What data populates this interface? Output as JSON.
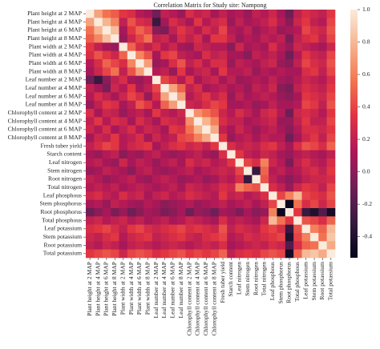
{
  "chart_data": {
    "type": "heatmap",
    "title": "Correlation Matrix for Study site: Nampong",
    "categories": [
      "Plant height at 2 MAP",
      "Plant height at 4 MAP",
      "Plant height at 6 MAP",
      "Plant height at 8 MAP",
      "Plant width at 2 MAP",
      "Plant width at 4 MAP",
      "Plant width at 6 MAP",
      "Plant width at 8 MAP",
      "Leaf number at 2 MAP",
      "Leaf number at 4 MAP",
      "Leaf number at 6 MAP",
      "Leaf number at 8 MAP",
      "Chlorophyll content at 2 MAP",
      "Chlorophyll content at 4 MAP",
      "Chlorophyll content at 6 MAP",
      "Chlorophyll content at 8 MAP",
      "Fresh tuber yield",
      "Starch content",
      "Leaf nitrogen",
      "Stem nitrogen",
      "Root nitrogen",
      "Total nitrogen",
      "Leaf phosphous",
      "Stem phosphorus",
      "Root phosphorus",
      "Total phosphous",
      "Leaf potassium",
      "Stem potassium",
      "Root potassium",
      "Total potassium"
    ],
    "values": [
      [
        1
      ],
      [
        0.72,
        1
      ],
      [
        0.55,
        0.78,
        1
      ],
      [
        0.48,
        0.62,
        0.82,
        1
      ],
      [
        0.35,
        0.2,
        0.1,
        0.05,
        1
      ],
      [
        0.3,
        0.45,
        0.35,
        0.25,
        0.5,
        1
      ],
      [
        0.15,
        0.3,
        0.5,
        0.4,
        0.3,
        0.62,
        1
      ],
      [
        0.1,
        0.25,
        0.4,
        0.55,
        0.2,
        0.45,
        0.7,
        1
      ],
      [
        -0.1,
        -0.3,
        0.0,
        0.2,
        0.3,
        0.1,
        0.05,
        0.15,
        1
      ],
      [
        0.2,
        0.1,
        -0.05,
        0.25,
        0.15,
        0.35,
        0.1,
        0.2,
        0.4,
        1
      ],
      [
        0.15,
        0.3,
        0.2,
        0.1,
        0.25,
        0.4,
        0.3,
        0.05,
        0.3,
        0.72,
        1
      ],
      [
        0.05,
        0.2,
        0.35,
        0.3,
        0.1,
        0.2,
        0.45,
        0.35,
        0.15,
        0.5,
        0.7,
        1
      ],
      [
        0.3,
        0.1,
        0.25,
        0.2,
        0.05,
        0.15,
        0.2,
        0.1,
        0.35,
        0.2,
        0.15,
        0.25,
        1
      ],
      [
        0.2,
        0.35,
        0.15,
        0.3,
        0.25,
        0.1,
        0.3,
        0.2,
        0.1,
        0.3,
        0.25,
        0.2,
        0.65,
        1
      ],
      [
        0.25,
        0.15,
        0.3,
        0.1,
        0.2,
        0.3,
        0.15,
        0.25,
        0.2,
        0.1,
        0.35,
        0.3,
        0.55,
        0.78,
        1
      ],
      [
        0.1,
        0.25,
        0.2,
        0.35,
        0.15,
        0.2,
        0.3,
        0.1,
        0.25,
        0.15,
        0.2,
        0.4,
        0.45,
        0.6,
        0.75,
        1
      ],
      [
        0.2,
        0.3,
        0.4,
        0.35,
        0.15,
        0.25,
        0.3,
        0.35,
        0.1,
        0.2,
        0.3,
        0.35,
        0.25,
        0.3,
        0.2,
        0.35,
        1
      ],
      [
        0.1,
        0.05,
        0.15,
        0.2,
        0.0,
        0.1,
        0.05,
        0.15,
        0.2,
        0.1,
        0.05,
        0.1,
        0.15,
        0.2,
        0.1,
        0.05,
        0.3,
        1
      ],
      [
        0.15,
        0.2,
        0.1,
        0.05,
        0.25,
        0.1,
        0.2,
        0.15,
        0.05,
        0.15,
        0.2,
        0.1,
        0.3,
        0.2,
        0.25,
        0.15,
        0.2,
        0.35,
        1
      ],
      [
        0.05,
        0.1,
        0.2,
        0.15,
        0.1,
        0.0,
        0.15,
        0.2,
        0.1,
        0.05,
        0.1,
        0.15,
        0.2,
        0.1,
        0.15,
        0.2,
        0.25,
        0.2,
        0.4,
        1
      ],
      [
        0.2,
        0.15,
        0.05,
        0.1,
        0.15,
        0.2,
        0.1,
        0.05,
        0.15,
        0.2,
        0.15,
        0.05,
        0.1,
        0.15,
        0.05,
        0.1,
        0.2,
        0.15,
        0.3,
        -0.3,
        1
      ],
      [
        0.15,
        0.2,
        0.15,
        0.2,
        0.1,
        0.15,
        0.2,
        0.15,
        0.1,
        0.15,
        0.2,
        0.1,
        0.25,
        0.2,
        0.15,
        0.2,
        0.3,
        0.25,
        0.6,
        0.5,
        0.45,
        1
      ],
      [
        0.25,
        0.3,
        0.2,
        0.15,
        0.3,
        0.2,
        0.25,
        0.1,
        0.2,
        0.25,
        0.15,
        0.2,
        0.3,
        0.25,
        0.2,
        0.15,
        0.35,
        0.2,
        0.25,
        0.15,
        0.2,
        0.3,
        1
      ],
      [
        0.1,
        0.15,
        0.05,
        0.2,
        0.15,
        0.1,
        0.05,
        0.15,
        0.1,
        0.0,
        0.05,
        0.1,
        0.15,
        0.05,
        0.1,
        0.15,
        0.2,
        0.1,
        0.15,
        0.2,
        0.1,
        0.2,
        0.4,
        1
      ],
      [
        -0.1,
        0.0,
        0.1,
        -0.05,
        0.05,
        -0.1,
        0.0,
        0.1,
        0.05,
        -0.05,
        0.0,
        0.1,
        -0.1,
        0.05,
        0.0,
        -0.1,
        0.1,
        0.05,
        -0.05,
        0.1,
        0.0,
        0.05,
        0.6,
        -0.5,
        1
      ],
      [
        0.2,
        0.25,
        0.15,
        0.2,
        0.25,
        0.15,
        0.2,
        0.1,
        0.15,
        0.2,
        0.1,
        0.15,
        0.25,
        0.2,
        0.15,
        0.1,
        0.3,
        0.15,
        0.2,
        0.15,
        0.1,
        0.25,
        0.8,
        0.55,
        0.35,
        1
      ],
      [
        0.3,
        0.35,
        0.4,
        0.3,
        0.2,
        0.35,
        0.4,
        0.3,
        0.25,
        0.3,
        0.35,
        0.4,
        0.3,
        0.35,
        0.3,
        0.25,
        0.45,
        0.2,
        0.3,
        0.25,
        0.2,
        0.35,
        0.4,
        0.3,
        -0.3,
        0.45,
        1
      ],
      [
        0.25,
        0.2,
        0.3,
        0.35,
        0.15,
        0.25,
        0.3,
        0.35,
        0.2,
        0.25,
        0.3,
        0.35,
        0.25,
        0.2,
        0.3,
        0.35,
        0.4,
        0.15,
        0.2,
        0.3,
        0.25,
        0.3,
        0.35,
        0.4,
        -0.4,
        0.4,
        0.6,
        1
      ],
      [
        0.2,
        0.15,
        0.25,
        0.2,
        0.1,
        0.2,
        0.25,
        0.2,
        0.15,
        0.2,
        0.25,
        0.2,
        0.15,
        0.2,
        0.25,
        0.2,
        0.3,
        0.1,
        0.15,
        0.2,
        0.25,
        0.2,
        0.3,
        0.25,
        -0.2,
        0.3,
        0.5,
        0.55,
        1
      ],
      [
        0.35,
        0.4,
        0.45,
        0.4,
        0.25,
        0.4,
        0.45,
        0.4,
        0.3,
        0.35,
        0.4,
        0.45,
        0.35,
        0.4,
        0.35,
        0.4,
        0.5,
        0.2,
        0.3,
        0.35,
        0.3,
        0.4,
        0.45,
        0.4,
        -0.45,
        0.5,
        0.8,
        0.85,
        0.75,
        1
      ]
    ],
    "clim": [
      -0.53,
      1
    ],
    "cticks": [
      -0.4,
      -0.2,
      {
        "value": 0,
        "label": "0.0"
      },
      0.2,
      0.4,
      0.6,
      0.8,
      {
        "value": 1,
        "label": "1.0"
      }
    ],
    "colormap": [
      "#03051a",
      "#35193e",
      "#701f57",
      "#ae1759",
      "#e13342",
      "#f37651",
      "#f6b48f",
      "#faebdd"
    ]
  }
}
